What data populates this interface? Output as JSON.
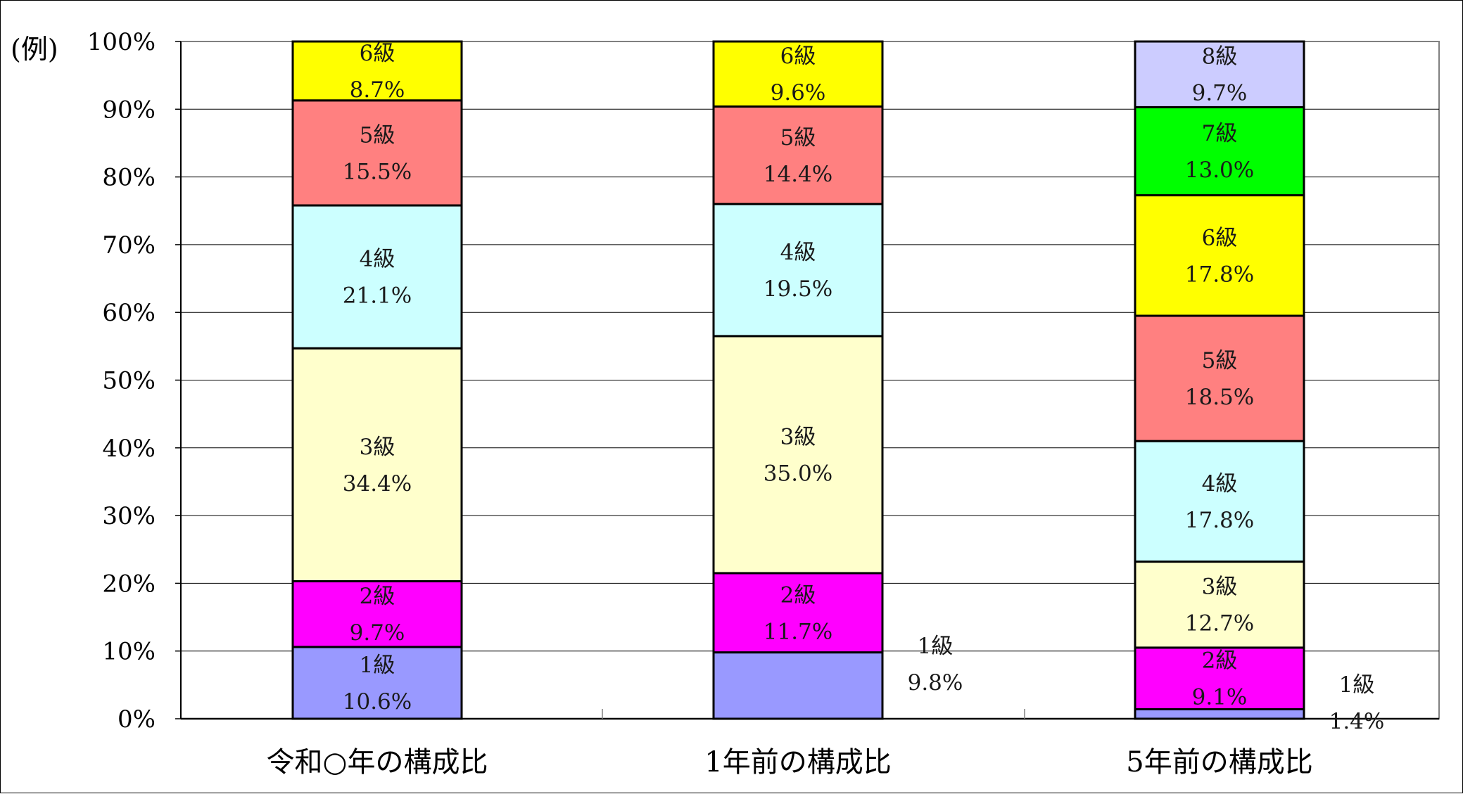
{
  "chart_data": {
    "type": "bar",
    "stacked": true,
    "unit_label": "(例)",
    "categories": [
      "令和○年の構成比",
      "1年前の構成比",
      "5年前の構成比"
    ],
    "ylim": [
      0,
      100
    ],
    "y_ticks": [
      "0%",
      "10%",
      "20%",
      "30%",
      "40%",
      "50%",
      "60%",
      "70%",
      "80%",
      "90%",
      "100%"
    ],
    "grid": true,
    "stacks": [
      {
        "category": "令和○年の構成比",
        "segments": [
          {
            "name": "1級",
            "value": 10.6,
            "label": "10.6%",
            "color": "#9999ff"
          },
          {
            "name": "2級",
            "value": 9.7,
            "label": "9.7%",
            "color": "#ff00ff"
          },
          {
            "name": "3級",
            "value": 34.4,
            "label": "34.4%",
            "color": "#ffffcc"
          },
          {
            "name": "4級",
            "value": 21.1,
            "label": "21.1%",
            "color": "#ccffff"
          },
          {
            "name": "5級",
            "value": 15.5,
            "label": "15.5%",
            "color": "#ff8080"
          },
          {
            "name": "6級",
            "value": 8.7,
            "label": "8.7%",
            "color": "#ffff00"
          }
        ]
      },
      {
        "category": "1年前の構成比",
        "segments": [
          {
            "name": "1級",
            "value": 9.8,
            "label": "9.8%",
            "color": "#9999ff",
            "outside": true
          },
          {
            "name": "2級",
            "value": 11.7,
            "label": "11.7%",
            "color": "#ff00ff"
          },
          {
            "name": "3級",
            "value": 35.0,
            "label": "35.0%",
            "color": "#ffffcc"
          },
          {
            "name": "4級",
            "value": 19.5,
            "label": "19.5%",
            "color": "#ccffff"
          },
          {
            "name": "5級",
            "value": 14.4,
            "label": "14.4%",
            "color": "#ff8080"
          },
          {
            "name": "6級",
            "value": 9.6,
            "label": "9.6%",
            "color": "#ffff00"
          }
        ]
      },
      {
        "category": "5年前の構成比",
        "segments": [
          {
            "name": "1級",
            "value": 1.4,
            "label": "1.4%",
            "color": "#9999ff",
            "outside": true
          },
          {
            "name": "2級",
            "value": 9.1,
            "label": "9.1%",
            "color": "#ff00ff"
          },
          {
            "name": "3級",
            "value": 12.7,
            "label": "12.7%",
            "color": "#ffffcc"
          },
          {
            "name": "4級",
            "value": 17.8,
            "label": "17.8%",
            "color": "#ccffff"
          },
          {
            "name": "5級",
            "value": 18.5,
            "label": "18.5%",
            "color": "#ff8080"
          },
          {
            "name": "6級",
            "value": 17.8,
            "label": "17.8%",
            "color": "#ffff00"
          },
          {
            "name": "7級",
            "value": 13.0,
            "label": "13.0%",
            "color": "#00ff00"
          },
          {
            "name": "8級",
            "value": 9.7,
            "label": "9.7%",
            "color": "#ccccff"
          }
        ]
      }
    ]
  }
}
